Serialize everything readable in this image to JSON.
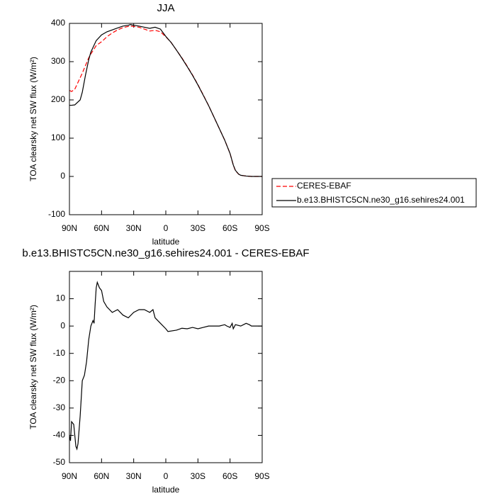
{
  "chart_data": [
    {
      "type": "line",
      "title": "JJA",
      "xlabel": "latitude",
      "ylabel": "TOA clearsky net SW flux (W/m²)",
      "xlim": [
        90,
        -90
      ],
      "xticks": [
        {
          "value": 90,
          "label": "90N"
        },
        {
          "value": 60,
          "label": "60N"
        },
        {
          "value": 30,
          "label": "30N"
        },
        0,
        {
          "value": -30,
          "label": "30S"
        },
        {
          "value": -60,
          "label": "60S"
        },
        {
          "value": -90,
          "label": "90S"
        }
      ],
      "ylim": [
        -100,
        400
      ],
      "yticks": [
        -100,
        0,
        100,
        200,
        300,
        400
      ],
      "legend": "right",
      "x": [
        90,
        88,
        85,
        80,
        78,
        75,
        72,
        70,
        65,
        60,
        55,
        50,
        45,
        40,
        35,
        33,
        30,
        25,
        20,
        15,
        10,
        5,
        0,
        -5,
        -10,
        -15,
        -20,
        -25,
        -30,
        -35,
        -40,
        -45,
        -50,
        -55,
        -60,
        -63,
        -65,
        -68,
        -70,
        -75,
        -80,
        -90
      ],
      "series": [
        {
          "name": "CERES-EBAF",
          "color": "#ff0000",
          "dashed": true,
          "values": [
            225,
            222,
            228,
            258,
            270,
            290,
            310,
            320,
            342,
            352,
            365,
            375,
            383,
            389,
            392,
            393,
            392,
            390,
            385,
            380,
            382,
            378,
            365,
            350,
            330,
            310,
            288,
            265,
            240,
            213,
            185,
            155,
            125,
            95,
            60,
            30,
            15,
            6,
            3,
            1,
            0,
            0
          ]
        },
        {
          "name": "b.e13.BHISTC5CN.ne30_g16.sehires24.001",
          "color": "#000000",
          "dashed": false,
          "values": [
            186,
            186,
            187,
            200,
            220,
            265,
            305,
            325,
            355,
            370,
            378,
            383,
            388,
            393,
            395,
            397,
            395,
            393,
            390,
            387,
            390,
            385,
            366,
            350,
            330,
            309,
            287,
            264,
            239,
            212,
            185,
            155,
            125,
            95,
            60,
            30,
            16,
            6,
            3,
            1,
            0,
            0
          ]
        }
      ]
    },
    {
      "type": "line",
      "title": "b.e13.BHISTC5CN.ne30_g16.sehires24.001 - CERES-EBAF",
      "xlabel": "latitude",
      "ylabel": "TOA clearsky net SW flux (W/m²)",
      "xlim": [
        90,
        -90
      ],
      "xticks": [
        {
          "value": 90,
          "label": "90N"
        },
        {
          "value": 60,
          "label": "60N"
        },
        {
          "value": 30,
          "label": "30N"
        },
        0,
        {
          "value": -30,
          "label": "30S"
        },
        {
          "value": -60,
          "label": "60S"
        },
        {
          "value": -90,
          "label": "90S"
        }
      ],
      "ylim": [
        -50,
        20
      ],
      "yticks": [
        -50,
        -40,
        -30,
        -20,
        -10,
        0,
        10
      ],
      "x": [
        90,
        89,
        88,
        86,
        85,
        84,
        83,
        82,
        80,
        78,
        76,
        74,
        72,
        70,
        68,
        67,
        66,
        65,
        64,
        62,
        60,
        58,
        55,
        50,
        45,
        40,
        35,
        30,
        25,
        20,
        15,
        12,
        10,
        5,
        0,
        -2,
        -10,
        -15,
        -20,
        -25,
        -30,
        -35,
        -40,
        -50,
        -55,
        -57,
        -60,
        -62,
        -63,
        -65,
        -70,
        -75,
        -78,
        -80,
        -90
      ],
      "series": [
        {
          "color": "#000000",
          "dashed": false,
          "values": [
            -40,
            -42,
            -35,
            -36,
            -40,
            -44,
            -45,
            -43,
            -33,
            -20,
            -18,
            -13,
            -5,
            0,
            2,
            1,
            8,
            14,
            16,
            14,
            13,
            9,
            7,
            5,
            6,
            4,
            3,
            5,
            6,
            6,
            5,
            6,
            3,
            1,
            -1,
            -2,
            -1.5,
            -0.8,
            -1,
            -0.5,
            -1,
            -0.5,
            0,
            0,
            0.5,
            0,
            -0.5,
            1,
            -1,
            0.5,
            0,
            1,
            0.5,
            0,
            0
          ]
        }
      ]
    }
  ]
}
